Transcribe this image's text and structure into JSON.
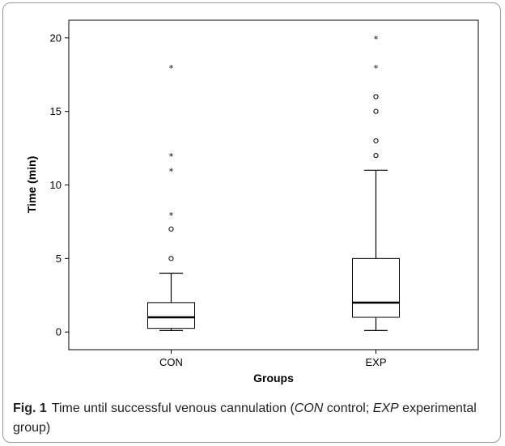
{
  "caption": {
    "label": "Fig. 1",
    "text_before": "Time until successful venous cannulation (",
    "con_abbrev": "CON",
    "con_text": " control; ",
    "exp_abbrev": "EXP",
    "exp_text": " experimental group)"
  },
  "chart_data": {
    "type": "boxplot",
    "title": "",
    "xlabel": "Groups",
    "ylabel": "Time (min)",
    "ylim": [
      -1.2,
      21.2
    ],
    "yticks": [
      0,
      5,
      10,
      15,
      20
    ],
    "grid": false,
    "categories": [
      "CON",
      "EXP"
    ],
    "series": [
      {
        "category": "CON",
        "whisker_low": 0.1,
        "q1": 0.25,
        "median": 1,
        "q3": 2,
        "whisker_high": 4,
        "outliers": [
          5,
          7
        ],
        "extremes": [
          8,
          11,
          12,
          18
        ]
      },
      {
        "category": "EXP",
        "whisker_low": 0.1,
        "q1": 1,
        "median": 2,
        "q3": 5,
        "whisker_high": 11,
        "outliers": [
          12,
          13,
          15,
          16
        ],
        "extremes": [
          18,
          20
        ]
      }
    ]
  }
}
